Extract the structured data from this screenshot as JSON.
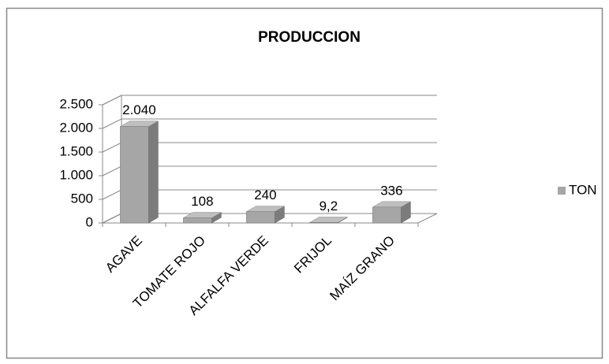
{
  "chart_data": {
    "type": "bar3d",
    "title": "PRODUCCION",
    "categories": [
      "AGAVE",
      "TOMATE ROJO",
      "ALFALFA VERDE",
      "FRIJOL",
      "MAÍZ GRANO"
    ],
    "series": [
      {
        "name": "TON",
        "color": "#a6a6a6",
        "values": [
          2040,
          108,
          240,
          9.2,
          336
        ],
        "value_labels": [
          "2.040",
          "108",
          "240",
          "9,2",
          "336"
        ]
      }
    ],
    "ylim": [
      0,
      2500
    ],
    "yticks": [
      0,
      500,
      {
        "value": 1000,
        "label": "1.000"
      },
      {
        "value": 1500,
        "label": "1.500"
      },
      {
        "value": 2000,
        "label": "2.000"
      },
      {
        "value": 2500,
        "label": "2.500"
      }
    ],
    "grid": true,
    "legend": "right"
  }
}
